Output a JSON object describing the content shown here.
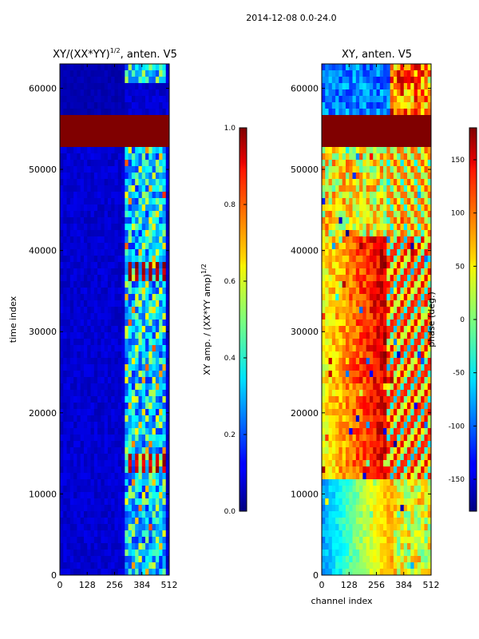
{
  "figure_title": "2014-12-08 0.0-24.0",
  "chart_data": [
    {
      "type": "heatmap",
      "id": "amp",
      "title_main": "XY/(XX*YY)",
      "title_sup": "1/2",
      "title_tail": ", anten. V5",
      "xlabel": "",
      "ylabel": "time index",
      "xlim": [
        0,
        512
      ],
      "ylim": [
        0,
        63000
      ],
      "xticks": [
        0,
        128,
        256,
        384,
        512
      ],
      "yticks": [
        0,
        10000,
        20000,
        30000,
        40000,
        50000,
        60000
      ],
      "colormap": "jet",
      "colorbar": {
        "label_main": "XY amp. / (XX*YY amp)",
        "label_sup": "1/2",
        "range": [
          0.0,
          1.0
        ],
        "ticks": [
          "0.0",
          "0.2",
          "0.4",
          "0.6",
          "0.8",
          "1.0"
        ],
        "tick_values": [
          0.0,
          0.2,
          0.4,
          0.6,
          0.8,
          1.0
        ]
      },
      "saturated_band": {
        "y_range": [
          53000,
          56500
        ],
        "value": 1.0
      },
      "grid": false
    },
    {
      "type": "heatmap",
      "id": "phase",
      "title": "XY, anten. V5",
      "xlabel": "channel index",
      "ylabel": "",
      "xlim": [
        0,
        512
      ],
      "ylim": [
        0,
        63000
      ],
      "xticks": [
        0,
        128,
        256,
        384,
        512
      ],
      "yticks": [
        0,
        10000,
        20000,
        30000,
        40000,
        50000,
        60000
      ],
      "colormap": "jet",
      "colorbar": {
        "label": "phase (deg.)",
        "range": [
          -180,
          180
        ],
        "ticks": [
          "-150",
          "-100",
          "-50",
          "0",
          "50",
          "100",
          "150"
        ],
        "tick_values": [
          -150,
          -100,
          -50,
          0,
          50,
          100,
          150
        ]
      },
      "saturated_band": {
        "y_range": [
          53000,
          56500
        ],
        "value": 180
      },
      "grid": false
    }
  ]
}
